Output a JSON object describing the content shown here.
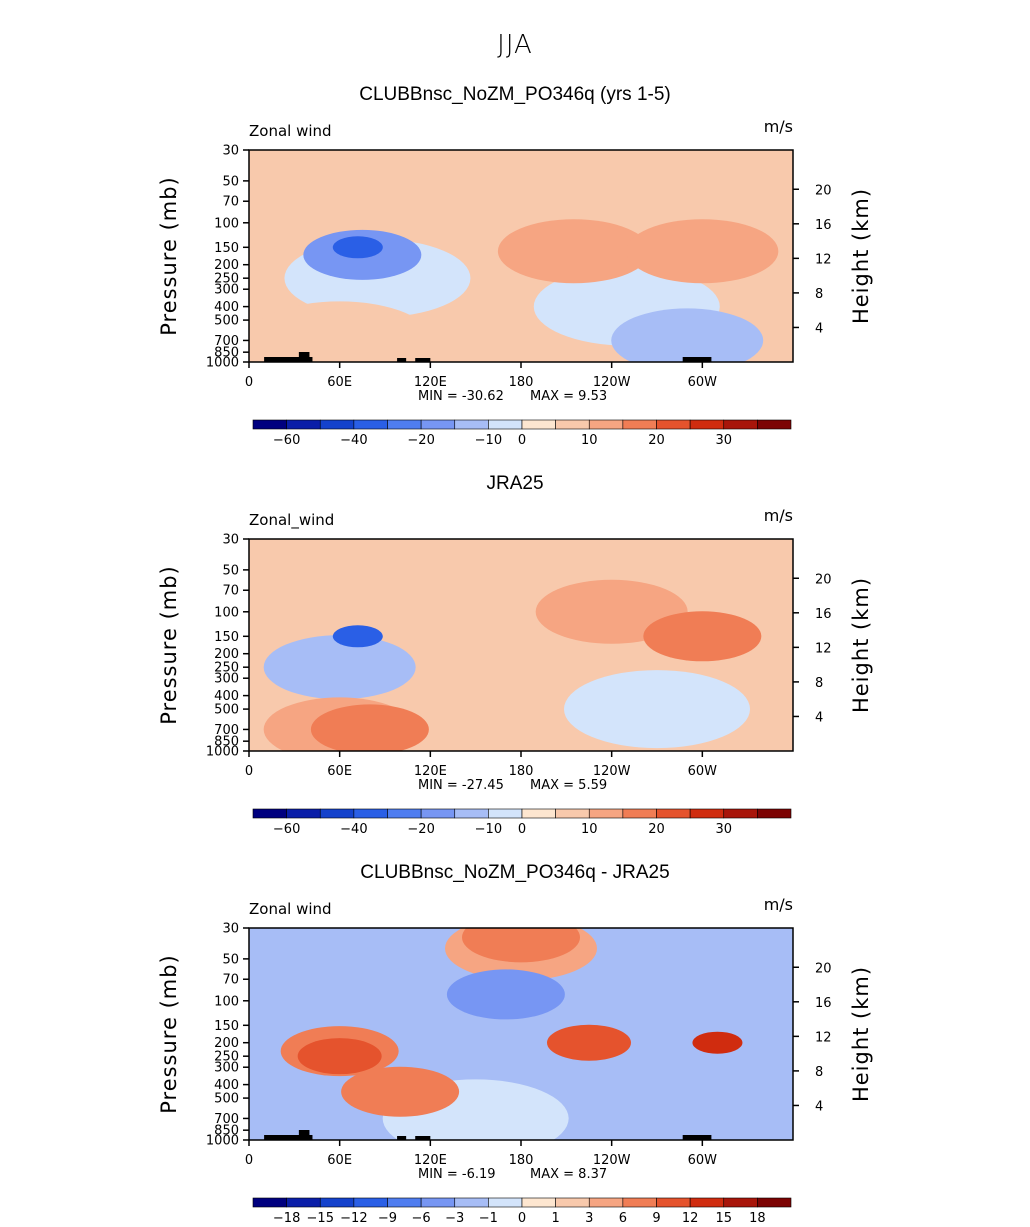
{
  "figure_title": "JJA",
  "colors": {
    "neg_ramp": [
      "#00007f",
      "#0a1ea8",
      "#1442cc",
      "#2a5fe6",
      "#4f7df0",
      "#7796f3",
      "#a7bdf6",
      "#d3e4fb"
    ],
    "pos_ramp": [
      "#fde6d0",
      "#f8c9ac",
      "#f6a582",
      "#f07d55",
      "#e5532d",
      "#d02c0f",
      "#a8150a",
      "#7c0303"
    ]
  },
  "chart_data": [
    {
      "type": "heatmap",
      "title": "CLUBBnsc_NoZM_PO346q (yrs 1-5)",
      "variable_label": "Zonal wind",
      "units_label": "m/s",
      "ylabel": "Pressure (mb)",
      "ylabel_right": "Height (km)",
      "x_ticks": [
        "0",
        "60E",
        "120E",
        "180",
        "120W",
        "60W"
      ],
      "y_ticks": [
        "30",
        "50",
        "70",
        "100",
        "150",
        "200",
        "250",
        "300",
        "400",
        "500",
        "700",
        "850",
        "1000"
      ],
      "height_ticks": [
        "20",
        "16",
        "12",
        "8",
        "4"
      ],
      "min_label": "MIN = -30.62",
      "max_label": "MAX = 9.53",
      "min_value": -30.62,
      "max_value": 9.53,
      "colorbar_labels": [
        "-60",
        "-40",
        "-20",
        "-10",
        "0",
        "10",
        "20",
        "30"
      ],
      "background_level": 1,
      "features": [
        {
          "lon": 72,
          "p": 150,
          "level": -5
        },
        {
          "lon": 75,
          "p": 170,
          "level": -3
        },
        {
          "lon": 85,
          "p": 250,
          "level": -1
        },
        {
          "lon": 60,
          "p": 700,
          "level": 1
        },
        {
          "lon": 215,
          "p": 160,
          "level": 2
        },
        {
          "lon": 300,
          "p": 160,
          "level": 2
        },
        {
          "lon": 250,
          "p": 400,
          "level": -1
        },
        {
          "lon": 290,
          "p": 700,
          "level": -2
        }
      ]
    },
    {
      "type": "heatmap",
      "title": "JRA25",
      "variable_label": "Zonal_wind",
      "units_label": "m/s",
      "ylabel": "Pressure (mb)",
      "ylabel_right": "Height (km)",
      "x_ticks": [
        "0",
        "60E",
        "120E",
        "180",
        "120W",
        "60W"
      ],
      "y_ticks": [
        "30",
        "50",
        "70",
        "100",
        "150",
        "200",
        "250",
        "300",
        "400",
        "500",
        "700",
        "850",
        "1000"
      ],
      "height_ticks": [
        "20",
        "16",
        "12",
        "8",
        "4"
      ],
      "min_label": "MIN = -27.45",
      "max_label": "MAX = 5.59",
      "min_value": -27.45,
      "max_value": 5.59,
      "colorbar_labels": [
        "-60",
        "-40",
        "-20",
        "-10",
        "0",
        "10",
        "20",
        "30"
      ],
      "background_level": 1,
      "features": [
        {
          "lon": 72,
          "p": 150,
          "level": -5
        },
        {
          "lon": 60,
          "p": 250,
          "level": -2
        },
        {
          "lon": 240,
          "p": 100,
          "level": 2
        },
        {
          "lon": 300,
          "p": 150,
          "level": 3
        },
        {
          "lon": 270,
          "p": 500,
          "level": -1
        },
        {
          "lon": 60,
          "p": 700,
          "level": 2
        },
        {
          "lon": 80,
          "p": 700,
          "level": 3
        }
      ]
    },
    {
      "type": "heatmap",
      "title": "CLUBBnsc_NoZM_PO346q - JRA25",
      "variable_label": "Zonal wind",
      "units_label": "m/s",
      "ylabel": "Pressure (mb)",
      "ylabel_right": "Height (km)",
      "x_ticks": [
        "0",
        "60E",
        "120E",
        "180",
        "120W",
        "60W"
      ],
      "y_ticks": [
        "30",
        "50",
        "70",
        "100",
        "150",
        "200",
        "250",
        "300",
        "400",
        "500",
        "700",
        "850",
        "1000"
      ],
      "height_ticks": [
        "20",
        "16",
        "12",
        "8",
        "4"
      ],
      "min_label": "MIN = -6.19",
      "max_label": "MAX = 8.37",
      "min_value": -6.19,
      "max_value": 8.37,
      "colorbar_labels": [
        "-18",
        "-15",
        "-12",
        "-9",
        "-6",
        "-3",
        "-1",
        "0",
        "1",
        "3",
        "6",
        "9",
        "12",
        "15",
        "18"
      ],
      "background_level": -2,
      "features": [
        {
          "lon": 180,
          "p": 35,
          "level": 3
        },
        {
          "lon": 180,
          "p": 42,
          "level": 2
        },
        {
          "lon": 170,
          "p": 90,
          "level": -3
        },
        {
          "lon": 60,
          "p": 250,
          "level": 4
        },
        {
          "lon": 60,
          "p": 230,
          "level": 3
        },
        {
          "lon": 100,
          "p": 450,
          "level": 3
        },
        {
          "lon": 225,
          "p": 200,
          "level": 4
        },
        {
          "lon": 310,
          "p": 200,
          "level": 5
        },
        {
          "lon": 150,
          "p": 700,
          "level": -1
        }
      ]
    }
  ]
}
